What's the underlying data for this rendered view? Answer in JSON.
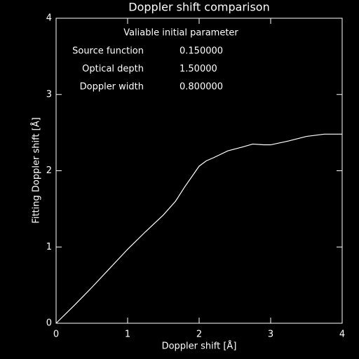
{
  "chart_data": {
    "type": "line",
    "title": "Doppler shift comparison",
    "xlabel": "Doppler shift [Å]",
    "ylabel": "Fitting Doppler shift [Å]",
    "annotations": {
      "heading": "Valiable initial parameter",
      "rows": [
        [
          "Source function",
          "0.150000"
        ],
        [
          "Optical depth",
          "1.50000"
        ],
        [
          "Doppler width",
          "0.800000"
        ]
      ]
    },
    "x": [
      0,
      0.25,
      0.5,
      0.75,
      1,
      1.25,
      1.5,
      1.67,
      1.8,
      2,
      2.1,
      2.2,
      2.4,
      2.6,
      2.75,
      2.9,
      3,
      3.25,
      3.5,
      3.75,
      4
    ],
    "series": [
      {
        "name": "Fitting Doppler shift",
        "color": "#ffffff",
        "values": [
          0,
          0.23,
          0.47,
          0.72,
          0.97,
          1.2,
          1.42,
          1.6,
          1.79,
          2.06,
          2.13,
          2.17,
          2.26,
          2.31,
          2.35,
          2.34,
          2.34,
          2.39,
          2.45,
          2.48,
          2.48
        ]
      }
    ],
    "xlim": [
      0,
      4
    ],
    "ylim": [
      0,
      4
    ],
    "xticks": [
      0,
      1,
      2,
      3,
      4
    ],
    "yticks": [
      0,
      1,
      2,
      3,
      4
    ]
  }
}
